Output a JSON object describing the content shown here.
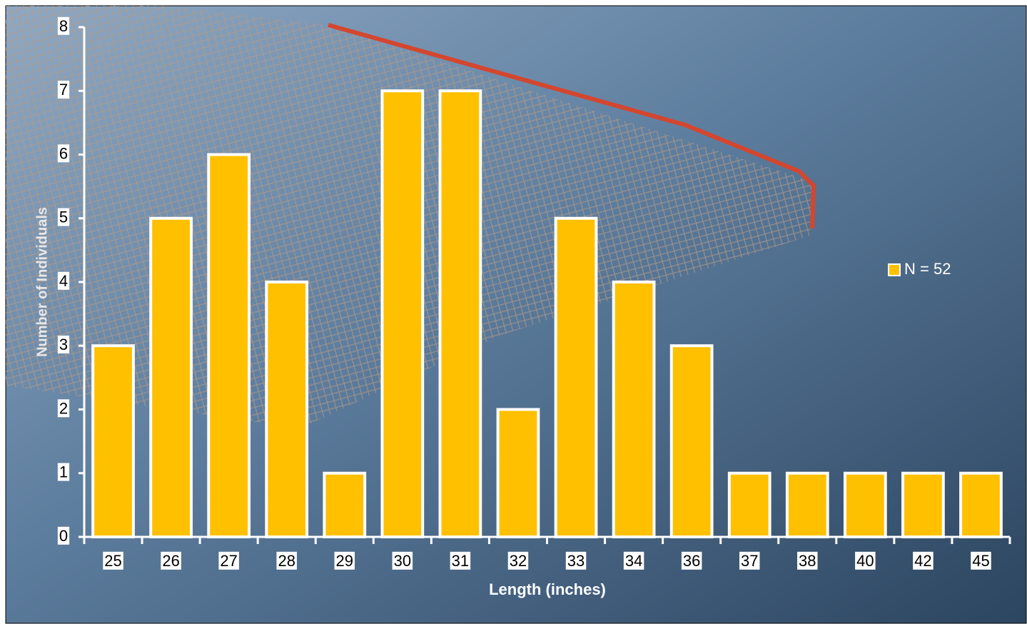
{
  "chart_data": {
    "type": "bar",
    "x_label": "Length (inches)",
    "y_label": "Number of Individuals",
    "categories": [
      "25",
      "26",
      "27",
      "28",
      "29",
      "30",
      "31",
      "32",
      "33",
      "34",
      "36",
      "37",
      "38",
      "40",
      "42",
      "45"
    ],
    "series": [
      {
        "name": "N = 52",
        "color": "#ffc000",
        "values": [
          3,
          5,
          6,
          4,
          1,
          7,
          7,
          2,
          5,
          4,
          3,
          1,
          1,
          1,
          1,
          1
        ]
      }
    ],
    "ylim": [
      0,
      8
    ],
    "yticks": [
      0,
      1,
      2,
      3,
      4,
      5,
      6,
      7,
      8
    ],
    "grid": false,
    "legend": "right"
  }
}
